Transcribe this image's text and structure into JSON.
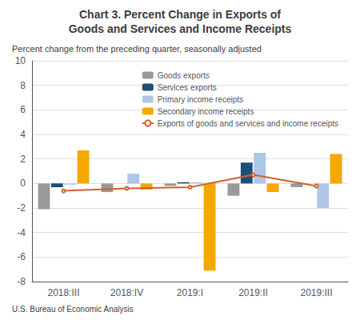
{
  "chart_data": {
    "type": "bar",
    "title": "Chart 3. Percent Change in Exports of\nGoods and Services and Income Receipts",
    "subtitle": "Percent change from the preceding quarter, seasonally adjusted",
    "annotations": [
      "U.S. Bureau of Economic Analysis"
    ],
    "categories": [
      "2018:III",
      "2018:IV",
      "2019:I",
      "2019:II",
      "2019:III"
    ],
    "series": [
      {
        "name": "Goods exports",
        "type": "bar",
        "color": "#999999",
        "values": [
          -2.1,
          -0.7,
          -0.2,
          -1.0,
          -0.3
        ]
      },
      {
        "name": "Services exports",
        "type": "bar",
        "color": "#1f4e79",
        "values": [
          -0.3,
          0.0,
          0.1,
          1.7,
          0.0
        ]
      },
      {
        "name": "Primary income receipts",
        "type": "bar",
        "color": "#aec6e8",
        "values": [
          -0.1,
          0.8,
          0.1,
          2.5,
          -2.0
        ]
      },
      {
        "name": "Secondary income receipts",
        "type": "bar",
        "color": "#f5a800",
        "values": [
          2.7,
          -0.5,
          -7.1,
          -0.7,
          2.4
        ]
      },
      {
        "name": "Exports of goods and services and income receipts",
        "type": "line",
        "color": "#d45f2a",
        "values": [
          -0.6,
          -0.4,
          -0.3,
          0.7,
          -0.2
        ]
      }
    ],
    "ylim": [
      -8,
      10
    ],
    "yticks": [
      -8,
      -6,
      -4,
      -2,
      0,
      2,
      4,
      6,
      8,
      10
    ],
    "grid": true,
    "legend": "upper right"
  }
}
